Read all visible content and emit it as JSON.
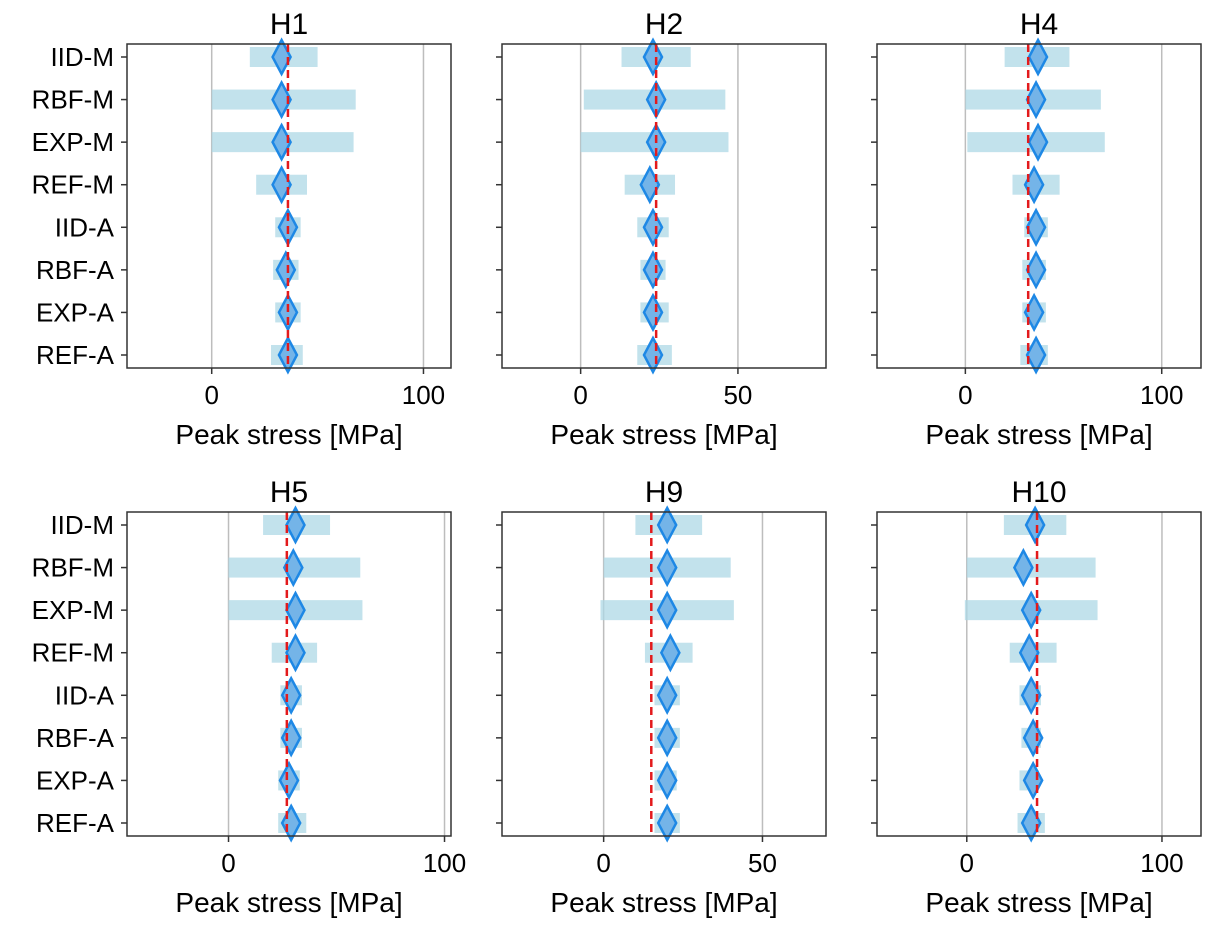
{
  "colors": {
    "interval": "#add8e6",
    "marker": "#1e88e5",
    "marker_fill": "#74b4e8",
    "reference": "#e31a1c",
    "grid": "#bdbdbd",
    "axes": "#333333"
  },
  "chart_data": [
    {
      "type": "interval",
      "title": "H1",
      "xlabel": "Peak stress [MPa]",
      "xlim": [
        -40,
        113
      ],
      "xticks": [
        0,
        100
      ],
      "reference": 36,
      "show_y_labels": true,
      "categories": [
        "IID-M",
        "RBF-M",
        "EXP-M",
        "REF-M",
        "IID-A",
        "RBF-A",
        "EXP-A",
        "REF-A"
      ],
      "values": [
        33,
        33,
        33,
        33,
        36,
        35,
        36,
        36
      ],
      "low": [
        18,
        0,
        0,
        21,
        30,
        29,
        30,
        28
      ],
      "high": [
        50,
        68,
        67,
        45,
        42,
        41,
        42,
        43
      ]
    },
    {
      "type": "interval",
      "title": "H2",
      "xlabel": "Peak stress [MPa]",
      "xlim": [
        -25,
        78
      ],
      "xticks": [
        0,
        50
      ],
      "reference": 24,
      "show_y_labels": false,
      "categories": [
        "IID-M",
        "RBF-M",
        "EXP-M",
        "REF-M",
        "IID-A",
        "RBF-A",
        "EXP-A",
        "REF-A"
      ],
      "values": [
        23,
        24,
        24,
        22,
        23,
        23,
        23,
        23
      ],
      "low": [
        13,
        1,
        0,
        14,
        18,
        19,
        19,
        18
      ],
      "high": [
        35,
        46,
        47,
        30,
        28,
        27,
        28,
        29
      ]
    },
    {
      "type": "interval",
      "title": "H4",
      "xlabel": "Peak stress [MPa]",
      "xlim": [
        -45,
        120
      ],
      "xticks": [
        0,
        100
      ],
      "reference": 32,
      "show_y_labels": false,
      "categories": [
        "IID-M",
        "RBF-M",
        "EXP-M",
        "REF-M",
        "IID-A",
        "RBF-A",
        "EXP-A",
        "REF-A"
      ],
      "values": [
        37,
        36,
        37,
        35,
        36,
        36,
        35,
        36
      ],
      "low": [
        20,
        0,
        1,
        24,
        30,
        29,
        29,
        28
      ],
      "high": [
        53,
        69,
        71,
        48,
        42,
        41,
        41,
        42
      ]
    },
    {
      "type": "interval",
      "title": "H5",
      "xlabel": "Peak stress [MPa]",
      "xlim": [
        -47,
        103
      ],
      "xticks": [
        0,
        100
      ],
      "reference": 27,
      "show_y_labels": true,
      "categories": [
        "IID-M",
        "RBF-M",
        "EXP-M",
        "REF-M",
        "IID-A",
        "RBF-A",
        "EXP-A",
        "REF-A"
      ],
      "values": [
        31,
        30,
        31,
        31,
        29,
        29,
        28,
        29
      ],
      "low": [
        16,
        0,
        0,
        20,
        24,
        24,
        23,
        23
      ],
      "high": [
        47,
        61,
        62,
        41,
        34,
        34,
        33,
        36
      ]
    },
    {
      "type": "interval",
      "title": "H9",
      "xlabel": "Peak stress [MPa]",
      "xlim": [
        -32,
        70
      ],
      "xticks": [
        0,
        50
      ],
      "reference": 15,
      "show_y_labels": false,
      "categories": [
        "IID-M",
        "RBF-M",
        "EXP-M",
        "REF-M",
        "IID-A",
        "RBF-A",
        "EXP-A",
        "REF-A"
      ],
      "values": [
        20,
        20,
        20,
        21,
        20,
        20,
        20,
        20
      ],
      "low": [
        10,
        0,
        -1,
        13,
        16,
        16,
        16,
        16
      ],
      "high": [
        31,
        40,
        41,
        28,
        24,
        24,
        23,
        24
      ]
    },
    {
      "type": "interval",
      "title": "H10",
      "xlabel": "Peak stress [MPa]",
      "xlim": [
        -46,
        120
      ],
      "xticks": [
        0,
        100
      ],
      "reference": 36,
      "show_y_labels": false,
      "categories": [
        "IID-M",
        "RBF-M",
        "EXP-M",
        "REF-M",
        "IID-A",
        "RBF-A",
        "EXP-A",
        "REF-A"
      ],
      "values": [
        35,
        29,
        33,
        32,
        33,
        34,
        34,
        33
      ],
      "low": [
        19,
        0,
        -1,
        22,
        27,
        28,
        27,
        26
      ],
      "high": [
        51,
        66,
        67,
        46,
        38,
        38,
        37,
        40
      ]
    }
  ]
}
